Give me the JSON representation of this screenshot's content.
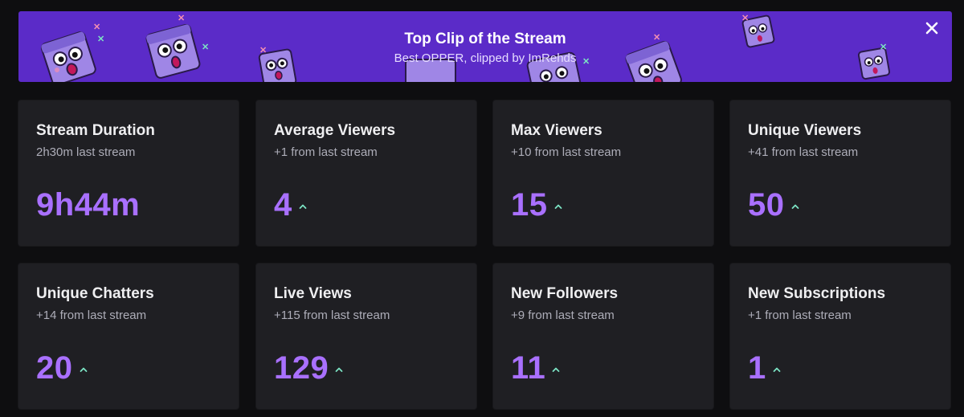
{
  "banner": {
    "title": "Top Clip of the Stream",
    "subtitle": "Best OPPER, clipped by ImRehds",
    "background_color": "#5b2bc8",
    "close_icon": "close-icon"
  },
  "colors": {
    "accent": "#a970ff",
    "trend_up": "#7ce3c4",
    "card_bg": "#1f1f23",
    "page_bg": "#0e0e10"
  },
  "stats": [
    {
      "title": "Stream Duration",
      "subtitle": "2h30m last stream",
      "value": "9h44m",
      "trend": "none"
    },
    {
      "title": "Average Viewers",
      "subtitle": "+1 from last stream",
      "value": "4",
      "trend": "up"
    },
    {
      "title": "Max Viewers",
      "subtitle": "+10 from last stream",
      "value": "15",
      "trend": "up"
    },
    {
      "title": "Unique Viewers",
      "subtitle": "+41 from last stream",
      "value": "50",
      "trend": "up"
    },
    {
      "title": "Unique Chatters",
      "subtitle": "+14 from last stream",
      "value": "20",
      "trend": "up"
    },
    {
      "title": "Live Views",
      "subtitle": "+115 from last stream",
      "value": "129",
      "trend": "up"
    },
    {
      "title": "New Followers",
      "subtitle": "+9 from last stream",
      "value": "11",
      "trend": "up"
    },
    {
      "title": "New Subscriptions",
      "subtitle": "+1 from last stream",
      "value": "1",
      "trend": "up"
    }
  ]
}
